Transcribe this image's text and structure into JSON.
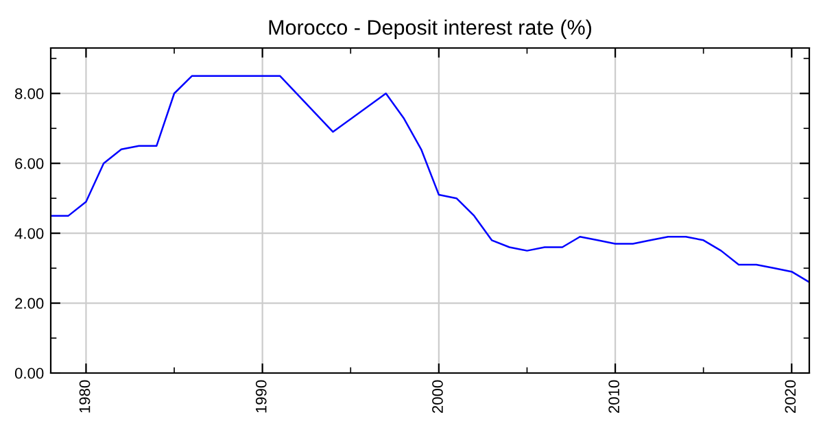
{
  "chart_data": {
    "type": "line",
    "title": "Morocco - Deposit interest rate (%)",
    "x": [
      1978,
      1979,
      1980,
      1981,
      1982,
      1983,
      1984,
      1985,
      1986,
      1991,
      1994,
      1997,
      1998,
      1999,
      2000,
      2001,
      2002,
      2003,
      2004,
      2005,
      2006,
      2007,
      2008,
      2009,
      2010,
      2011,
      2012,
      2013,
      2014,
      2015,
      2016,
      2017,
      2018,
      2019,
      2020,
      2021
    ],
    "series": [
      {
        "color": "#0000ff",
        "values": [
          4.5,
          4.5,
          4.9,
          6.0,
          6.4,
          6.5,
          6.5,
          8.0,
          8.5,
          8.5,
          6.9,
          8.0,
          7.3,
          6.4,
          5.1,
          5.0,
          4.5,
          3.8,
          3.6,
          3.5,
          3.6,
          3.6,
          3.9,
          3.8,
          3.7,
          3.7,
          3.8,
          3.9,
          3.9,
          3.8,
          3.5,
          3.1,
          3.1,
          3.0,
          2.9,
          2.6
        ]
      }
    ],
    "xlim": [
      1978,
      2021
    ],
    "xticks": [
      1980,
      1990,
      2000,
      2010,
      2020
    ],
    "ylim": [
      0,
      9.3
    ],
    "yticks": [
      {
        "value": 0,
        "label": "0.00"
      },
      {
        "value": 2,
        "label": "2.00"
      },
      {
        "value": 4,
        "label": "4.00"
      },
      {
        "value": 6,
        "label": "6.00"
      },
      {
        "value": 8,
        "label": "8.00"
      }
    ],
    "grid": true,
    "legend": false,
    "marker": "none",
    "line_style": "solid"
  }
}
